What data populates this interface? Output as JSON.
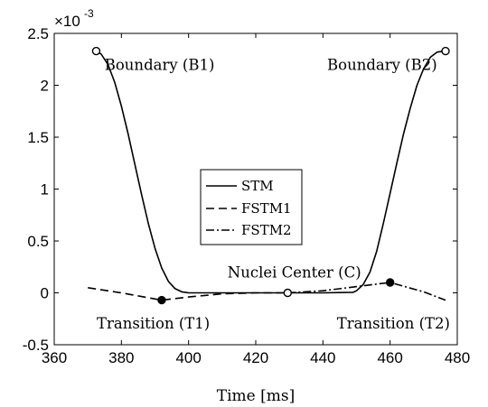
{
  "chart_data": {
    "type": "line",
    "xlabel": "Time [ms]",
    "ylabel": "",
    "xlim": [
      360,
      480
    ],
    "ylim": [
      -0.5,
      2.5
    ],
    "y_multiplier_label": {
      "base": "×10",
      "exponent": "-3"
    },
    "xticks": [
      360,
      380,
      400,
      420,
      440,
      460,
      480
    ],
    "yticks": [
      -0.5,
      0,
      0.5,
      1,
      1.5,
      2,
      2.5
    ],
    "ytick_labels": [
      "-0.5",
      "0",
      "0.5",
      "1",
      "1.5",
      "2",
      "2.5"
    ],
    "grid": false,
    "legend_position": "center",
    "series": [
      {
        "name": "STM",
        "style": "solid",
        "x": [
          372.5,
          374,
          376,
          378,
          380,
          382,
          384,
          386,
          388,
          390,
          392,
          394,
          396,
          398,
          399,
          400,
          410,
          420,
          430,
          440,
          449,
          450,
          452,
          454,
          456,
          458,
          460,
          462,
          464,
          466,
          468,
          470,
          472,
          474,
          476.5
        ],
        "y": [
          2.33,
          2.3,
          2.2,
          2.03,
          1.8,
          1.53,
          1.24,
          0.95,
          0.67,
          0.43,
          0.24,
          0.11,
          0.04,
          0.01,
          0.005,
          0.0,
          0.0,
          0.0,
          0.0,
          0.0,
          0.005,
          0.02,
          0.08,
          0.2,
          0.4,
          0.67,
          0.96,
          1.25,
          1.53,
          1.78,
          2.0,
          2.16,
          2.27,
          2.32,
          2.33
        ]
      },
      {
        "name": "FSTM1",
        "style": "dashed",
        "x": [
          370,
          380,
          392,
          400,
          410,
          420,
          429.5
        ],
        "y": [
          0.05,
          0.0,
          -0.07,
          -0.04,
          -0.01,
          0.0,
          0.0
        ]
      },
      {
        "name": "FSTM2",
        "style": "dashdot",
        "x": [
          429.5,
          440,
          450,
          460,
          470,
          476.5
        ],
        "y": [
          0.0,
          0.02,
          0.06,
          0.1,
          0.01,
          -0.07
        ]
      }
    ],
    "markers": [
      {
        "x": 372.5,
        "y": 2.33,
        "fill": "open"
      },
      {
        "x": 476.5,
        "y": 2.33,
        "fill": "open"
      },
      {
        "x": 429.5,
        "y": 0.0,
        "fill": "open"
      },
      {
        "x": 392,
        "y": -0.07,
        "fill": "filled"
      },
      {
        "x": 460,
        "y": 0.1,
        "fill": "filled"
      }
    ],
    "annotations": [
      {
        "text": "Boundary (B1)",
        "x": 375,
        "y": 2.2,
        "anchor": "start"
      },
      {
        "text": "Boundary (B2)",
        "x": 474,
        "y": 2.2,
        "anchor": "end"
      },
      {
        "text": "Nuclei Center (C)",
        "x": 431.5,
        "y": 0.2,
        "anchor": "middle"
      },
      {
        "text": "Transition (T1)",
        "x": 389.5,
        "y": -0.29,
        "anchor": "middle"
      },
      {
        "text": "Transition (T2)",
        "x": 461,
        "y": -0.29,
        "anchor": "middle"
      }
    ]
  }
}
